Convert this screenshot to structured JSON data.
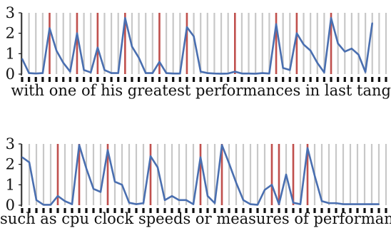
{
  "chart_data": [
    {
      "type": "line",
      "caption": "with one of his greatest performances in last tango",
      "ylim": [
        0,
        3
      ],
      "yticks": [
        "0",
        "1",
        "2",
        "3"
      ],
      "grid": true,
      "n_tokens": 54,
      "series": [
        {
          "values": [
            0.75,
            0.05,
            0.03,
            0.05,
            2.25,
            1.15,
            0.55,
            0.12,
            2.0,
            0.2,
            0.08,
            1.3,
            0.2,
            0.05,
            0.05,
            2.75,
            1.35,
            0.8,
            0.05,
            0.05,
            0.6,
            0.05,
            0.03,
            0.03,
            2.3,
            1.85,
            0.12,
            0.05,
            0.03,
            0.02,
            0.03,
            0.12,
            0.03,
            0.03,
            0.02,
            0.05,
            0.03,
            2.45,
            0.3,
            0.2,
            2.0,
            1.45,
            1.15,
            0.55,
            0.08,
            2.75,
            1.5,
            1.1,
            1.25,
            0.95,
            0.1,
            2.5
          ],
          "x": [
            0,
            1,
            2,
            3,
            4,
            5,
            6,
            7,
            8,
            9,
            10,
            11,
            12,
            13,
            14,
            15,
            16,
            17,
            18,
            19,
            20,
            21,
            22,
            23,
            24,
            25,
            26,
            27,
            28,
            29,
            30,
            31,
            32,
            33,
            34,
            35,
            36,
            37,
            38,
            39,
            40,
            41,
            42,
            43,
            44,
            45,
            46,
            47,
            48,
            49,
            50,
            51
          ]
        }
      ],
      "boundaries": [
        4,
        8,
        11,
        15,
        20,
        24,
        31,
        37,
        40,
        45
      ]
    },
    {
      "type": "line",
      "caption": "such as cpu clock speeds or measures of performance",
      "ylim": [
        0,
        3
      ],
      "yticks": [
        "0",
        "1",
        "2",
        "3"
      ],
      "grid": true,
      "n_tokens": 52,
      "series": [
        {
          "values": [
            2.35,
            2.1,
            0.25,
            0.02,
            0.02,
            0.45,
            0.2,
            0.05,
            2.95,
            1.8,
            0.8,
            0.65,
            2.7,
            1.15,
            1.0,
            0.12,
            0.05,
            0.1,
            2.4,
            1.85,
            0.25,
            0.45,
            0.25,
            0.25,
            0.05,
            2.35,
            0.45,
            0.1,
            2.95,
            2.05,
            1.1,
            0.25,
            0.05,
            0.02,
            0.75,
            1.0,
            0.05,
            1.5,
            0.12,
            0.05,
            2.8,
            1.45,
            0.2,
            0.1,
            0.1,
            0.05,
            0.05,
            0.05,
            0.05,
            0.05,
            0.05
          ],
          "x": [
            0,
            1,
            2,
            3,
            4,
            5,
            6,
            7,
            8,
            9,
            10,
            11,
            12,
            13,
            14,
            15,
            16,
            17,
            18,
            19,
            20,
            21,
            22,
            23,
            24,
            25,
            26,
            27,
            28,
            29,
            30,
            31,
            32,
            33,
            34,
            35,
            36,
            37,
            38,
            39,
            40,
            41,
            42,
            43,
            44,
            45,
            46,
            47,
            48,
            49,
            50
          ]
        }
      ],
      "boundaries": [
        5,
        8,
        12,
        18,
        25,
        28,
        35,
        36,
        38,
        40
      ]
    }
  ],
  "colors": {
    "line": "#4a6fb0",
    "boundary": "#c0504d",
    "grid": "#c8c8c8",
    "axis": "#111111"
  }
}
